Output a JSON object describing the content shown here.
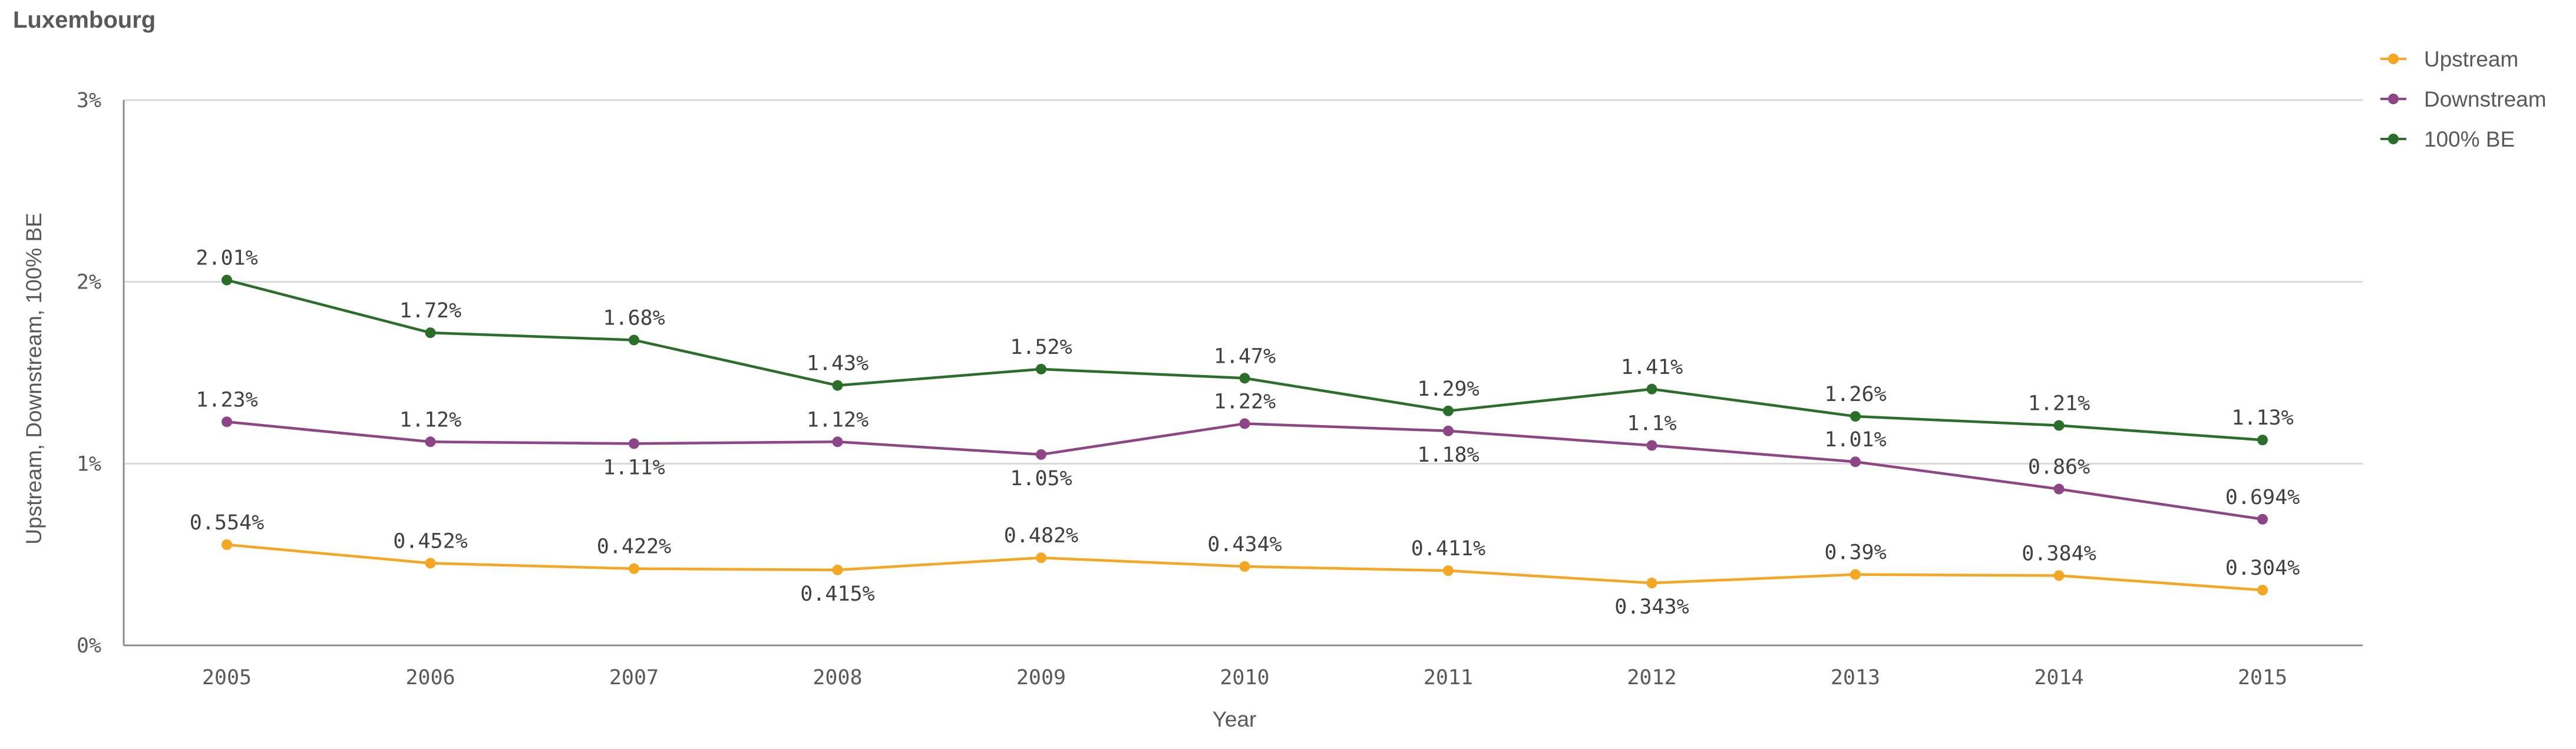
{
  "chart_data": {
    "type": "line",
    "title": "Luxembourg",
    "xlabel": "Year",
    "ylabel": "Upstream, Downstream, 100% BE",
    "categories": [
      "2005",
      "2006",
      "2007",
      "2008",
      "2009",
      "2010",
      "2011",
      "2012",
      "2013",
      "2014",
      "2015"
    ],
    "ylim": [
      0,
      3
    ],
    "yticks": [
      {
        "value": 0,
        "label": "0%"
      },
      {
        "value": 1,
        "label": "1%"
      },
      {
        "value": 2,
        "label": "2%"
      },
      {
        "value": 3,
        "label": "3%"
      }
    ],
    "grid": true,
    "legend_position": "top-right",
    "series": [
      {
        "name": "Upstream",
        "color": "#f5a623",
        "values": [
          0.554,
          0.452,
          0.422,
          0.415,
          0.482,
          0.434,
          0.411,
          0.343,
          0.39,
          0.384,
          0.304
        ],
        "labels": [
          "0.554%",
          "0.452%",
          "0.422%",
          "0.415%",
          "0.482%",
          "0.434%",
          "0.411%",
          "0.343%",
          "0.39%",
          "0.384%",
          "0.304%"
        ],
        "label_side": [
          "above",
          "above",
          "above",
          "below",
          "above",
          "above",
          "above",
          "below",
          "above",
          "above",
          "above"
        ]
      },
      {
        "name": "Downstream",
        "color": "#8e4585",
        "values": [
          1.23,
          1.12,
          1.11,
          1.12,
          1.05,
          1.22,
          1.18,
          1.1,
          1.01,
          0.86,
          0.694
        ],
        "labels": [
          "1.23%",
          "1.12%",
          "1.11%",
          "1.12%",
          "1.05%",
          "1.22%",
          "1.18%",
          "1.1%",
          "1.01%",
          "0.86%",
          "0.694%"
        ],
        "label_side": [
          "above",
          "above",
          "below",
          "above",
          "below",
          "above",
          "below",
          "above",
          "above",
          "above",
          "above"
        ]
      },
      {
        "name": "100% BE",
        "color": "#2a6e2a",
        "values": [
          2.01,
          1.72,
          1.68,
          1.43,
          1.52,
          1.47,
          1.29,
          1.41,
          1.26,
          1.21,
          1.13
        ],
        "labels": [
          "2.01%",
          "1.72%",
          "1.68%",
          "1.43%",
          "1.52%",
          "1.47%",
          "1.29%",
          "1.41%",
          "1.26%",
          "1.21%",
          "1.13%"
        ],
        "label_side": [
          "above",
          "above",
          "above",
          "above",
          "above",
          "above",
          "above",
          "above",
          "above",
          "above",
          "above"
        ]
      }
    ]
  }
}
